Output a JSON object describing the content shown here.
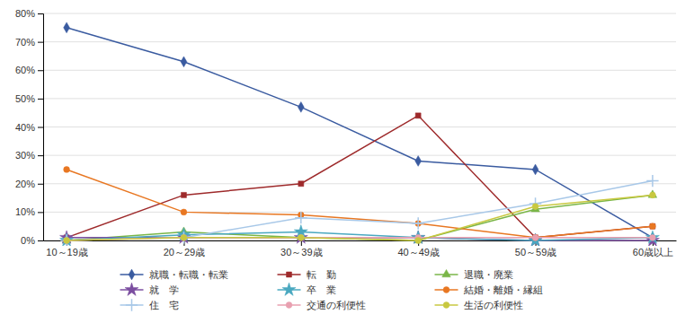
{
  "chart_data": {
    "type": "line",
    "categories": [
      "10～19歳",
      "20～29歳",
      "30～39歳",
      "40～49歳",
      "50～59歳",
      "60歳以上"
    ],
    "series": [
      {
        "name": "就職・転職・転業",
        "color": "#3A5BA0",
        "marker": "diamond",
        "values": [
          75,
          63,
          47,
          28,
          25,
          1
        ]
      },
      {
        "name": "転　勤",
        "color": "#9E2A2B",
        "marker": "square",
        "values": [
          1,
          16,
          20,
          44,
          1,
          5
        ]
      },
      {
        "name": "退職・廃業",
        "color": "#7AB648",
        "marker": "triangle",
        "values": [
          0,
          3,
          1,
          0,
          11,
          16
        ]
      },
      {
        "name": "就　学",
        "color": "#7B4EA0",
        "marker": "star",
        "values": [
          1,
          1,
          1,
          1,
          0,
          0
        ]
      },
      {
        "name": "卒　業",
        "color": "#4AA8C0",
        "marker": "star",
        "values": [
          0,
          2,
          3,
          1,
          0,
          1
        ]
      },
      {
        "name": "結婚・離婚・縁組",
        "color": "#E87722",
        "marker": "circle",
        "values": [
          25,
          10,
          9,
          6,
          1,
          5
        ]
      },
      {
        "name": "住　宅",
        "color": "#A8C8E8",
        "marker": "plus",
        "values": [
          0,
          1,
          8,
          6,
          13,
          21
        ]
      },
      {
        "name": "交通の利便性",
        "color": "#E8A0B0",
        "marker": "circle",
        "values": [
          0,
          1,
          1,
          1,
          1,
          1
        ]
      },
      {
        "name": "生活の利便性",
        "color": "#C8C840",
        "marker": "circle",
        "values": [
          0,
          1,
          1,
          0,
          12,
          16
        ]
      }
    ],
    "ylim": [
      0,
      80
    ],
    "yticks": [
      {
        "value": 0,
        "label": "0%"
      },
      {
        "value": 10,
        "label": "10%"
      },
      {
        "value": 20,
        "label": "20%"
      },
      {
        "value": 30,
        "label": "30%"
      },
      {
        "value": 40,
        "label": "40%"
      },
      {
        "value": 50,
        "label": "50%"
      },
      {
        "value": 60,
        "label": "60%"
      },
      {
        "value": 70,
        "label": "70%"
      },
      {
        "value": 80,
        "label": "80%"
      }
    ],
    "grid": true,
    "legend": "bottom"
  }
}
